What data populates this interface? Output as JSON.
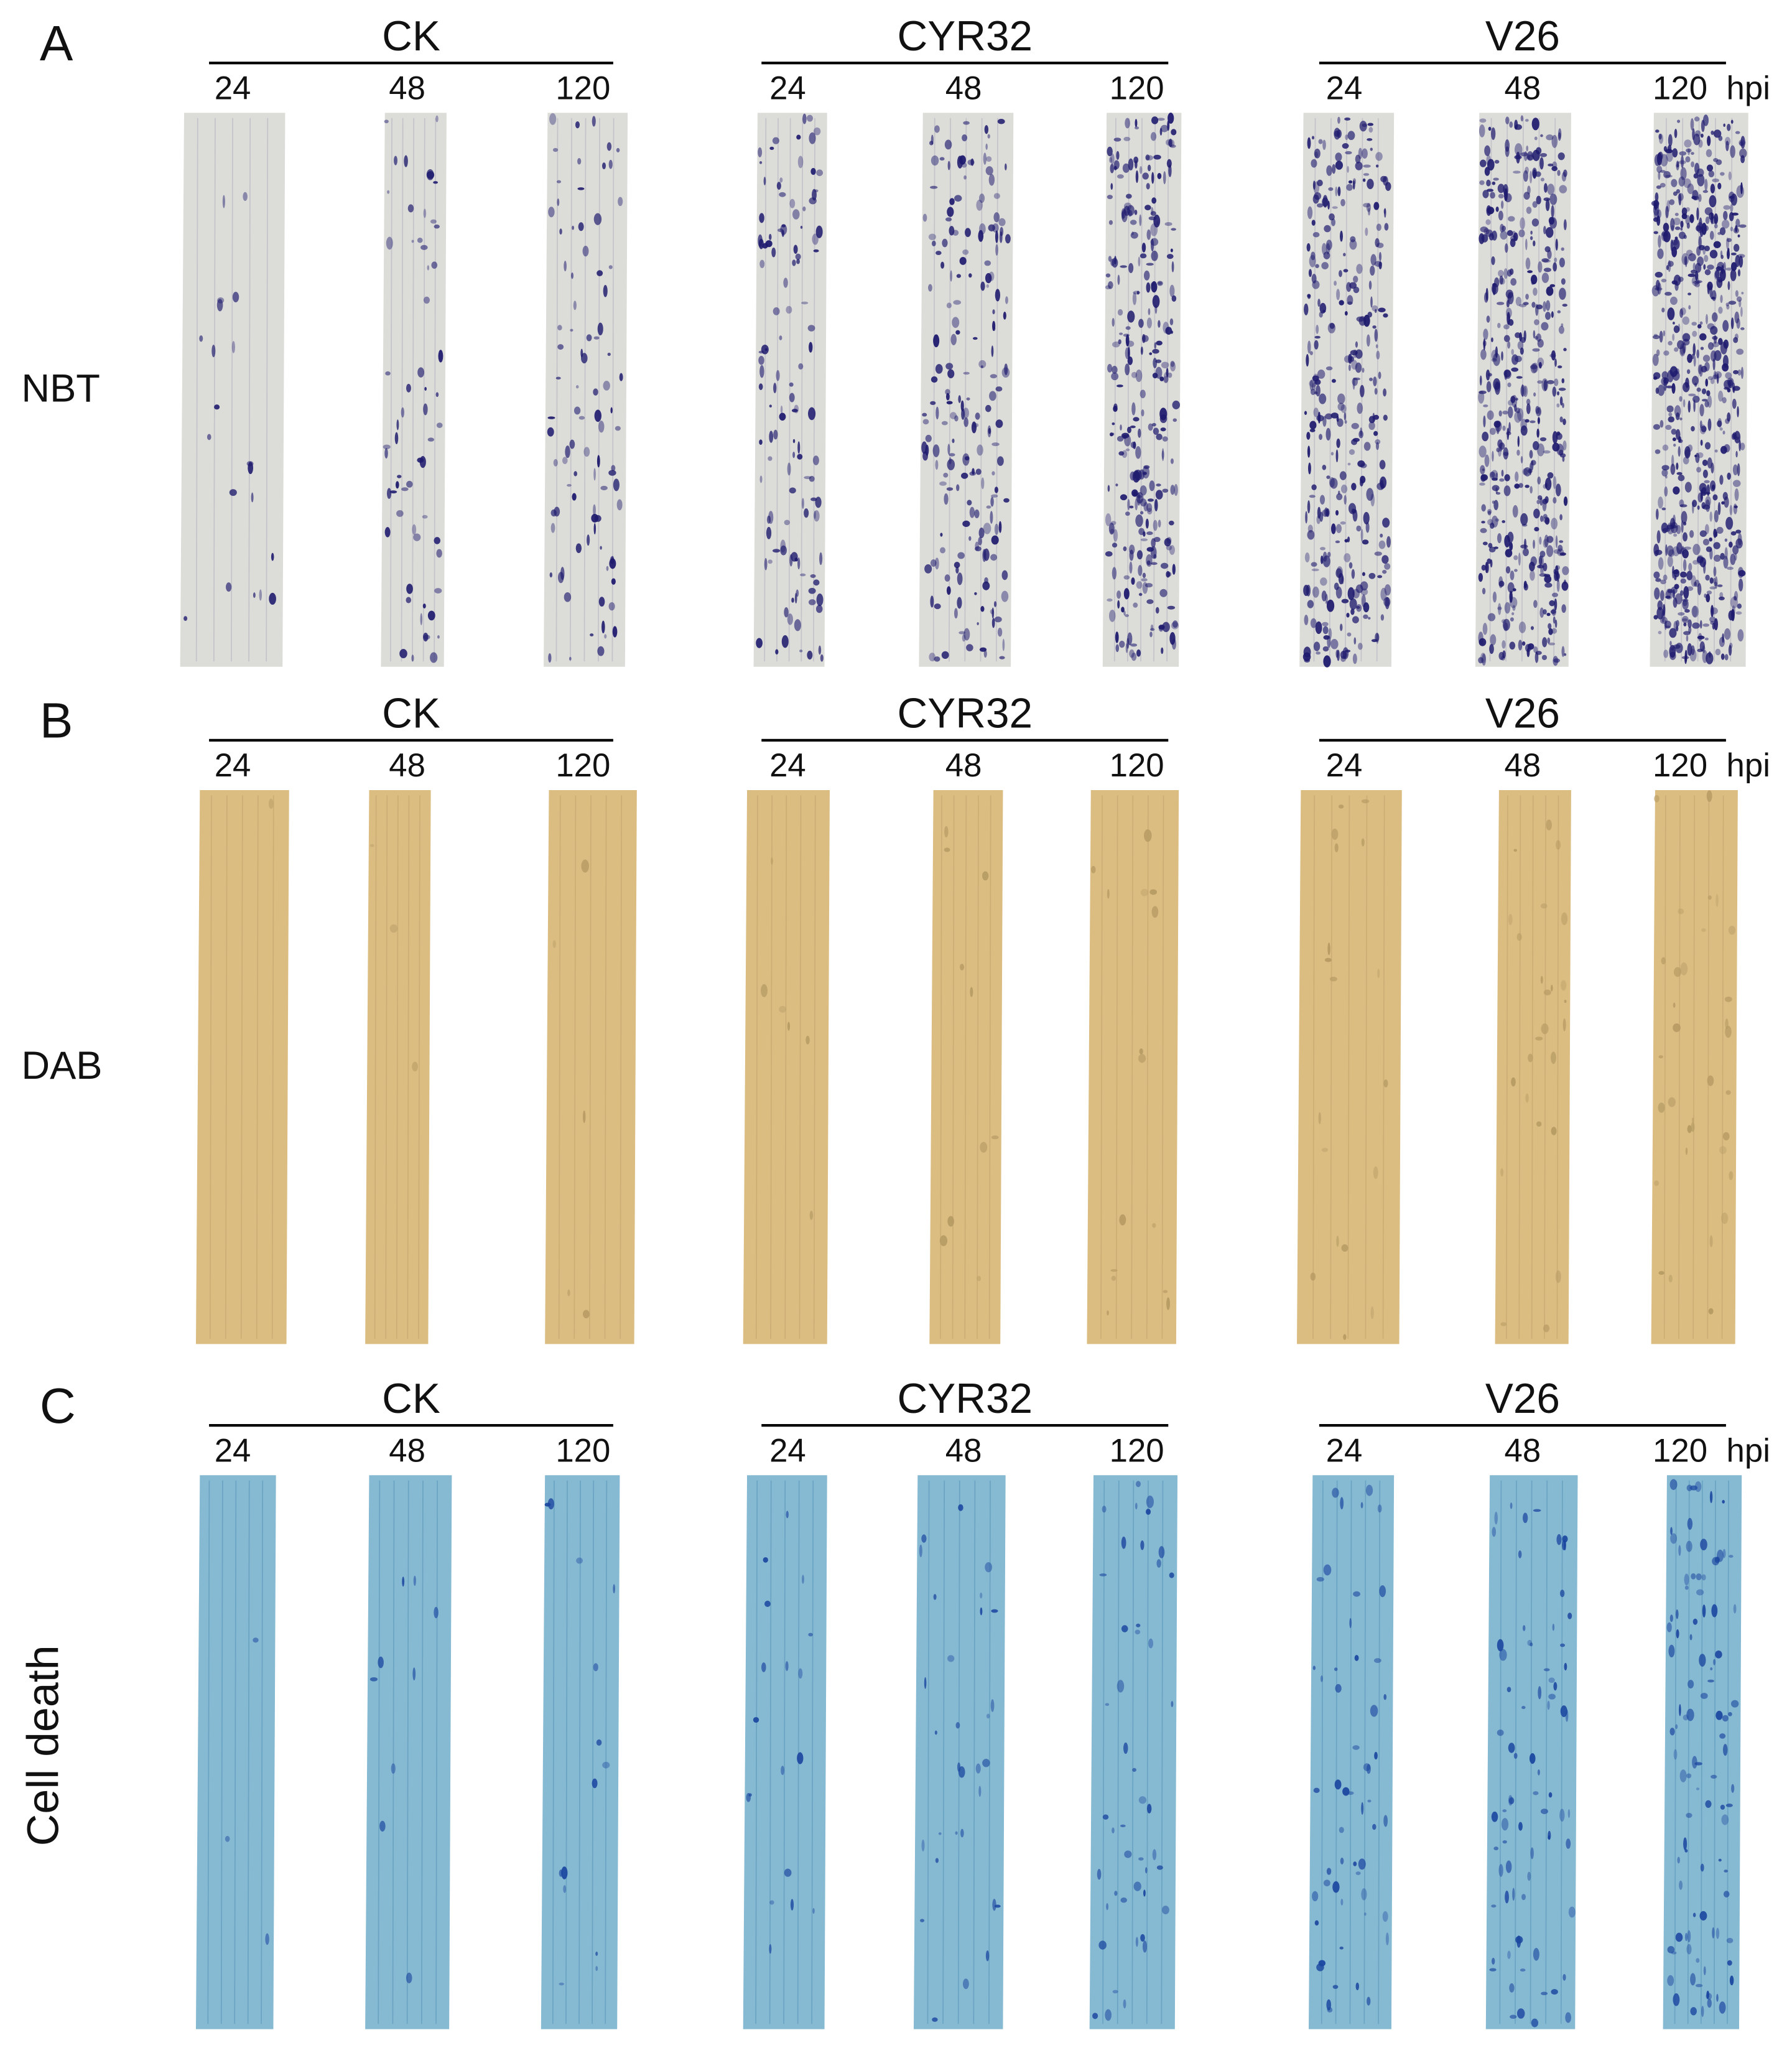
{
  "panels": [
    {
      "letter": "A",
      "stain": "NBT",
      "unit": "hpi",
      "groups": [
        {
          "name": "CK",
          "times": [
            "24",
            "48",
            "120"
          ]
        },
        {
          "name": "CYR32",
          "times": [
            "24",
            "48",
            "120"
          ]
        },
        {
          "name": "V26",
          "times": [
            "24",
            "48",
            "120"
          ]
        }
      ]
    },
    {
      "letter": "B",
      "stain": "DAB",
      "unit": "hpi",
      "groups": [
        {
          "name": "CK",
          "times": [
            "24",
            "48",
            "120"
          ]
        },
        {
          "name": "CYR32",
          "times": [
            "24",
            "48",
            "120"
          ]
        },
        {
          "name": "V26",
          "times": [
            "24",
            "48",
            "120"
          ]
        }
      ]
    },
    {
      "letter": "C",
      "stain": "Cell death",
      "unit": "hpi",
      "groups": [
        {
          "name": "CK",
          "times": [
            "24",
            "48",
            "120"
          ]
        },
        {
          "name": "CYR32",
          "times": [
            "24",
            "48",
            "120"
          ]
        },
        {
          "name": "V26",
          "times": [
            "24",
            "48",
            "120"
          ]
        }
      ]
    }
  ]
}
